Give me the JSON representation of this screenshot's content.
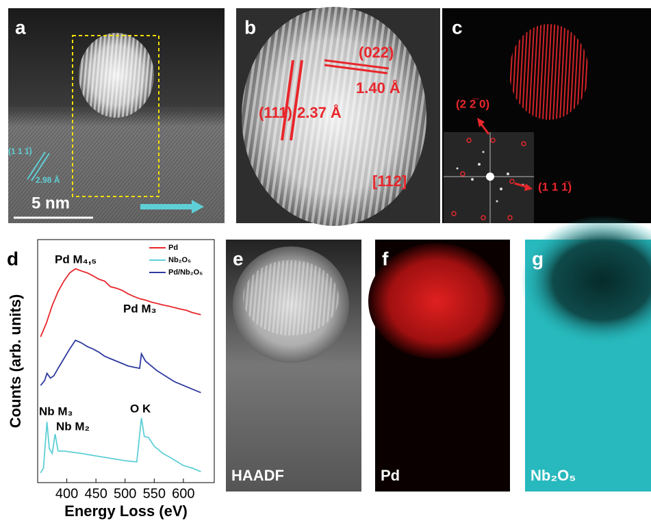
{
  "panels": {
    "a": {
      "label": "a",
      "scale_bar": "5 nm",
      "plane": "(1 1 1̅)",
      "spacing": "2.98 Å"
    },
    "b": {
      "label": "b",
      "plane_1": "(111)",
      "spacing_1": "2.37 Å",
      "plane_2": "(022)",
      "spacing_2": "1.40 Å",
      "zone_axis": "[112]"
    },
    "c": {
      "label": "c",
      "spot_1": "(2 2̅ 0)",
      "spot_2": "(1 1 1̅)"
    },
    "d": {
      "label": "d"
    },
    "e": {
      "label": "e",
      "caption": "HAADF"
    },
    "f": {
      "label": "f",
      "caption": "Pd"
    },
    "g": {
      "label": "g",
      "caption": "Nb₂O₅"
    }
  },
  "chart_data": {
    "type": "line",
    "x_label": "Energy Loss (eV)",
    "y_label": "Counts (arb. units)",
    "xlim": [
      350,
      653
    ],
    "xticks": [
      400,
      450,
      500,
      550,
      600
    ],
    "ylim": [
      0,
      100
    ],
    "legend": "upper right",
    "annotations": [
      "Pd M₄,₅",
      "Pd M₃",
      "Nb M₃",
      "Nb M₂",
      "O K"
    ],
    "series": [
      {
        "name": "Pd",
        "color": "#e8262b",
        "x": [
          355,
          365,
          375,
          385,
          395,
          405,
          415,
          425,
          435,
          445,
          455,
          465,
          475,
          485,
          495,
          505,
          515,
          525,
          535,
          545,
          555,
          565,
          575,
          585,
          595,
          605,
          615,
          630
        ],
        "values": [
          60,
          65.7,
          72.9,
          78.6,
          82.9,
          86.3,
          88,
          87.1,
          86.3,
          85.1,
          83.7,
          82.9,
          80.6,
          80,
          79.1,
          77.7,
          76.6,
          75.7,
          75.1,
          74.3,
          73.7,
          73.1,
          72.6,
          72,
          71.4,
          70.9,
          70,
          69.1
        ]
      },
      {
        "name": "Nb₂O₅",
        "color": "#5ecfd6",
        "x": [
          355,
          360,
          366,
          370,
          375,
          380,
          385,
          395,
          410,
          425,
          450,
          475,
          500,
          520,
          528,
          533,
          540,
          550,
          565,
          580,
          600,
          615,
          630
        ],
        "values": [
          4,
          6,
          25,
          14,
          12,
          20,
          13,
          13,
          12.5,
          12,
          11,
          10,
          9,
          8.5,
          26.6,
          19,
          18.6,
          15,
          12,
          10,
          7,
          6,
          4.5
        ]
      },
      {
        "name": "Pd/Nb₂O₅",
        "color": "#2e3a9e",
        "x": [
          355,
          362,
          366,
          372,
          378,
          385,
          395,
          405,
          415,
          425,
          435,
          445,
          455,
          465,
          475,
          485,
          495,
          505,
          515,
          525,
          528,
          535,
          545,
          555,
          565,
          575,
          585,
          595,
          605,
          615,
          630
        ],
        "values": [
          40,
          42,
          45,
          43,
          44,
          47,
          51,
          55,
          58.6,
          57.5,
          56,
          55,
          53.7,
          52,
          51,
          50,
          49,
          48,
          47.5,
          47,
          53,
          50,
          48,
          46,
          44.5,
          43,
          41.5,
          40.5,
          39.5,
          38.5,
          37
        ]
      }
    ]
  }
}
